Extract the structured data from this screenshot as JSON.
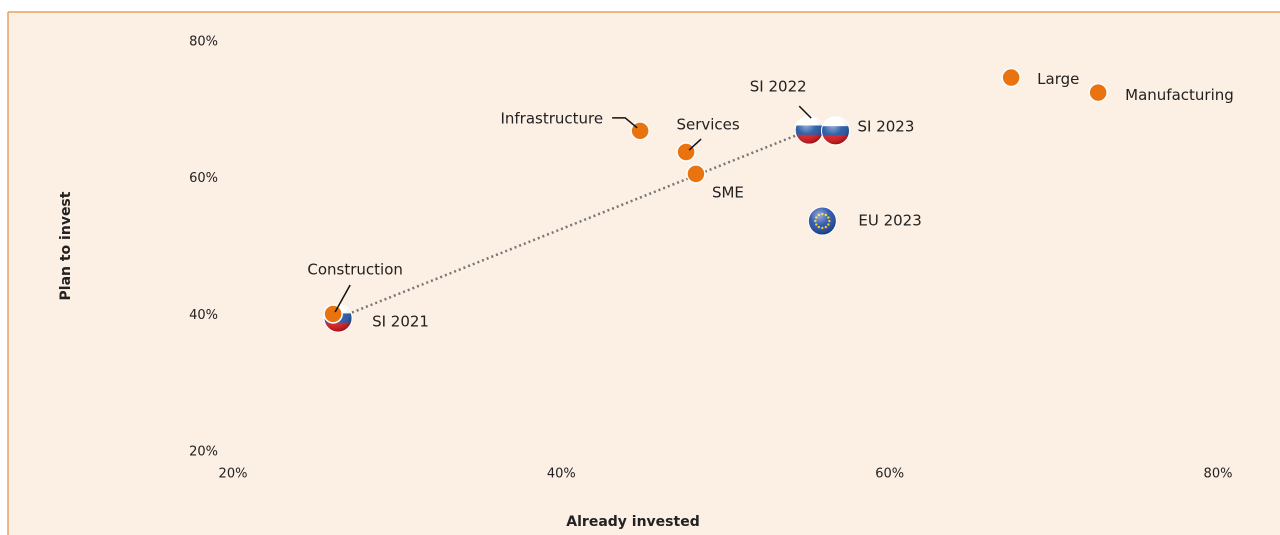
{
  "chart_data": {
    "type": "scatter",
    "xlabel": "Already invested",
    "ylabel": "Plan to invest",
    "xlim": [
      20,
      80
    ],
    "ylim": [
      20,
      80
    ],
    "xticks": [
      {
        "value": 20,
        "label": "20%"
      },
      {
        "value": 40,
        "label": "40%"
      },
      {
        "value": 60,
        "label": "60%"
      },
      {
        "value": 80,
        "label": "80%"
      }
    ],
    "yticks": [
      {
        "value": 20,
        "label": "20%"
      },
      {
        "value": 40,
        "label": "40%"
      },
      {
        "value": 60,
        "label": "60%"
      },
      {
        "value": 80,
        "label": "80%"
      }
    ],
    "color": "#e8730f",
    "points": [
      {
        "label": "SI 2021",
        "x": 26.4,
        "y": 39.6,
        "marker": "si-flag"
      },
      {
        "label": "SI 2022",
        "x": 55.1,
        "y": 67.1,
        "marker": "si-flag"
      },
      {
        "label": "SI 2023",
        "x": 56.7,
        "y": 67.0,
        "marker": "si-flag"
      },
      {
        "label": "EU 2023",
        "x": 55.9,
        "y": 53.8,
        "marker": "eu-flag"
      },
      {
        "label": "Construction",
        "x": 26.1,
        "y": 40.2,
        "marker": "dot"
      },
      {
        "label": "Infrastructure",
        "x": 44.8,
        "y": 67.0,
        "marker": "dot"
      },
      {
        "label": "Services",
        "x": 47.6,
        "y": 63.9,
        "marker": "dot"
      },
      {
        "label": "SME",
        "x": 48.2,
        "y": 60.7,
        "marker": "dot"
      },
      {
        "label": "Large",
        "x": 67.4,
        "y": 74.8,
        "marker": "dot"
      },
      {
        "label": "Manufacturing",
        "x": 72.7,
        "y": 72.6,
        "marker": "dot"
      }
    ]
  }
}
